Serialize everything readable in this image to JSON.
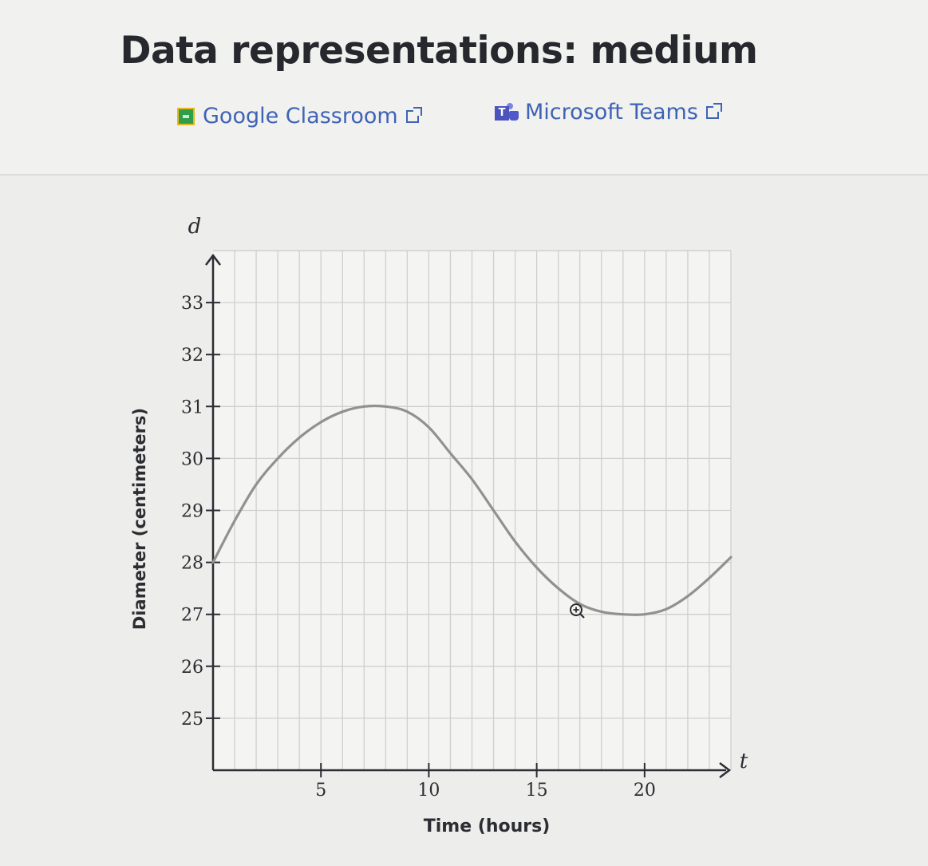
{
  "header": {
    "title": "Data representations: medium",
    "google_classroom_label": "Google Classroom",
    "microsoft_teams_label": "Microsoft Teams"
  },
  "colors": {
    "link": "#3f63b5",
    "curve": "#8f928f",
    "grid": "#cfcfcd",
    "axis": "#2b2d33"
  },
  "chart_data": {
    "type": "line",
    "title": "",
    "xlabel": "Time (hours)",
    "ylabel": "Diameter (centimeters)",
    "x_axis_variable": "t",
    "y_axis_variable": "d",
    "xlim": [
      0,
      24
    ],
    "ylim": [
      24,
      34
    ],
    "x_ticks": [
      5,
      10,
      15,
      20
    ],
    "y_ticks": [
      25,
      26,
      27,
      28,
      29,
      30,
      31,
      32,
      33
    ],
    "grid": true,
    "grid_x_step": 1,
    "grid_y_step": 1,
    "series": [
      {
        "points": [
          [
            0,
            28.0
          ],
          [
            1,
            28.8
          ],
          [
            2,
            29.5
          ],
          [
            3,
            30.0
          ],
          [
            4,
            30.4
          ],
          [
            5,
            30.7
          ],
          [
            6,
            30.9
          ],
          [
            7,
            31.0
          ],
          [
            8,
            31.0
          ],
          [
            9,
            30.9
          ],
          [
            10,
            30.6
          ],
          [
            11,
            30.1
          ],
          [
            12,
            29.6
          ],
          [
            13,
            29.0
          ],
          [
            14,
            28.4
          ],
          [
            15,
            27.9
          ],
          [
            16,
            27.5
          ],
          [
            17,
            27.2
          ],
          [
            18,
            27.05
          ],
          [
            19,
            27.0
          ],
          [
            20,
            27.0
          ],
          [
            21,
            27.1
          ],
          [
            22,
            27.35
          ],
          [
            23,
            27.7
          ],
          [
            24,
            28.1
          ]
        ]
      }
    ]
  }
}
